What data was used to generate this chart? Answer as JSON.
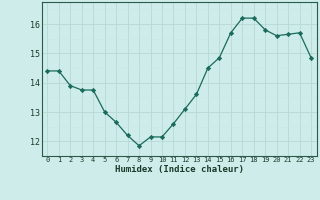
{
  "x": [
    0,
    1,
    2,
    3,
    4,
    5,
    6,
    7,
    8,
    9,
    10,
    11,
    12,
    13,
    14,
    15,
    16,
    17,
    18,
    19,
    20,
    21,
    22,
    23
  ],
  "y": [
    14.4,
    14.4,
    13.9,
    13.75,
    13.75,
    13.0,
    12.65,
    12.2,
    11.85,
    12.15,
    12.15,
    12.6,
    13.1,
    13.6,
    14.5,
    14.85,
    15.7,
    16.2,
    16.2,
    15.8,
    15.6,
    15.65,
    15.7,
    14.85
  ],
  "xlabel": "Humidex (Indice chaleur)",
  "xlim": [
    -0.5,
    23.5
  ],
  "ylim": [
    11.5,
    16.75
  ],
  "yticks": [
    12,
    13,
    14,
    15,
    16
  ],
  "xtick_labels": [
    "0",
    "1",
    "2",
    "3",
    "4",
    "5",
    "6",
    "7",
    "8",
    "9",
    "10",
    "11",
    "12",
    "13",
    "14",
    "15",
    "16",
    "17",
    "18",
    "19",
    "20",
    "21",
    "22",
    "23"
  ],
  "line_color": "#1a6b5a",
  "marker_color": "#1a6b5a",
  "bg_color": "#ceecea",
  "grid_major_color": "#b8d8d5",
  "grid_minor_color": "#c8e8e5",
  "axis_color": "#2a5a4a",
  "font_color": "#1a3a2a"
}
